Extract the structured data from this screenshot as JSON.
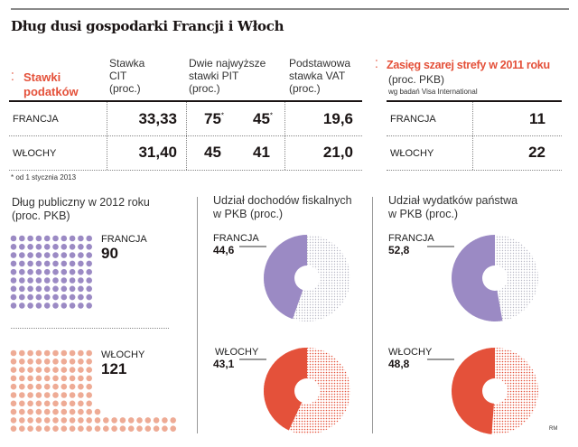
{
  "title": "Dług dusi gospodarki Francji i Włoch",
  "tax_table": {
    "section_title_line1": "Stawki",
    "section_title_line2": "podatków",
    "columns": [
      {
        "l1": "Stawka",
        "l2": "CIT",
        "l3": "(proc.)"
      },
      {
        "l1": "Dwie najwyższe",
        "l2": "stawki PIT",
        "l3": "(proc.)"
      },
      {
        "l1": "Podstawowa",
        "l2": "stawka VAT",
        "l3": "(proc.)"
      }
    ],
    "rows": [
      {
        "country": "FRANCJA",
        "cit": "33,33",
        "pit1": "75",
        "pit1_mark": "*",
        "pit2": "45",
        "pit2_mark": "*",
        "vat": "19,6"
      },
      {
        "country": "WŁOCHY",
        "cit": "31,40",
        "pit1": "45",
        "pit1_mark": "",
        "pit2": "41",
        "pit2_mark": "",
        "vat": "21,0"
      }
    ],
    "footnote": "* od 1 stycznia 2013"
  },
  "shadow_economy": {
    "title": "Zasięg szarej strefy w 2011 roku",
    "subtitle": "(proc. PKB)",
    "source": "wg badań Visa International",
    "rows": [
      {
        "country": "FRANCJA",
        "value": "11"
      },
      {
        "country": "WŁOCHY",
        "value": "22"
      }
    ]
  },
  "colors": {
    "france": "#9b8ac4",
    "italy_debt": "#eeab95",
    "italy": "#e4513a",
    "accent": "#e4513a",
    "france_rest": "#b8b8c4",
    "italy_rest": "#e4513a"
  },
  "credit": "RM",
  "chart_data": [
    {
      "type": "pictogram",
      "title_line1": "Dług publiczny w 2012 roku",
      "title_line2": "(proc. PKB)",
      "unit": "1 dot = 1 proc. PKB",
      "series": [
        {
          "name": "FRANCJA",
          "value": 90,
          "label": "90"
        },
        {
          "name": "WŁOCHY",
          "value": 121,
          "label": "121"
        }
      ]
    },
    {
      "type": "pie",
      "title_line1": "Udział dochodów fiskalnych",
      "title_line2": "w PKB (proc.)",
      "series": [
        {
          "name": "FRANCJA",
          "value": 44.6,
          "label": "44,6"
        },
        {
          "name": "WŁOCHY",
          "value": 43.1,
          "label": "43,1"
        }
      ]
    },
    {
      "type": "pie",
      "title_line1": "Udział wydatków państwa",
      "title_line2": "w PKB (proc.)",
      "series": [
        {
          "name": "FRANCJA",
          "value": 52.8,
          "label": "52,8"
        },
        {
          "name": "WŁOCHY",
          "value": 48.8,
          "label": "48,8"
        }
      ]
    }
  ]
}
